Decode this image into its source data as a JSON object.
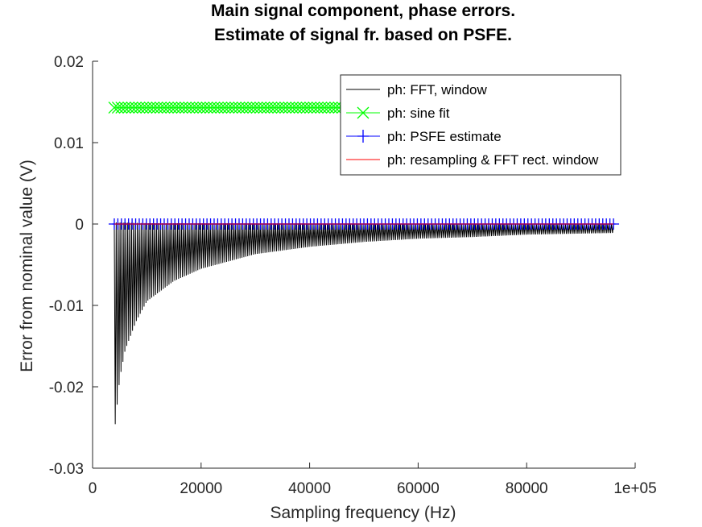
{
  "chart_data": {
    "type": "line",
    "title": [
      "Main signal component, phase errors.",
      "Estimate of signal fr. based on PSFE."
    ],
    "xlabel": "Sampling frequency (Hz)",
    "ylabel": "Error from nominal value (V)",
    "xlim": [
      0,
      100000
    ],
    "ylim": [
      -0.03,
      0.02
    ],
    "xticks": [
      0,
      20000,
      40000,
      60000,
      80000,
      100000
    ],
    "xtick_labels": [
      "0",
      "20000",
      "40000",
      "60000",
      "80000",
      "1e+05"
    ],
    "yticks": [
      -0.03,
      -0.02,
      -0.01,
      0,
      0.01,
      0.02
    ],
    "ytick_labels": [
      "-0.03",
      "-0.02",
      "-0.01",
      "0",
      "0.01",
      "0.02"
    ],
    "grid": false,
    "legend_position": "top-right",
    "series": [
      {
        "name": "ph: FFT, window",
        "color": "#000000",
        "marker": "none",
        "style": "oscillating-envelope",
        "x_range": [
          4000,
          96000
        ],
        "upper_envelope": [
          [
            4000,
            0.0002
          ],
          [
            10000,
            0.0001
          ],
          [
            96000,
            0.0
          ]
        ],
        "lower_envelope": [
          [
            4000,
            -0.0258
          ],
          [
            5000,
            -0.019
          ],
          [
            6000,
            -0.0155
          ],
          [
            8000,
            -0.012
          ],
          [
            10000,
            -0.0095
          ],
          [
            15000,
            -0.007
          ],
          [
            20000,
            -0.0055
          ],
          [
            30000,
            -0.0037
          ],
          [
            40000,
            -0.0028
          ],
          [
            50000,
            -0.0022
          ],
          [
            60000,
            -0.0018
          ],
          [
            70000,
            -0.0016
          ],
          [
            80000,
            -0.0013
          ],
          [
            96000,
            -0.0011
          ]
        ]
      },
      {
        "name": "ph: sine fit",
        "color": "#00ff00",
        "marker": "x",
        "x_range": [
          4000,
          96000
        ],
        "y": 0.0143
      },
      {
        "name": "ph: PSFE estimate",
        "color": "#0000ff",
        "marker": "+",
        "x_range": [
          4000,
          96000
        ],
        "y": 0.0
      },
      {
        "name": "ph: resampling & FFT rect. window",
        "color": "#ff0000",
        "marker": "none",
        "x_range": [
          4000,
          96000
        ],
        "y": 0.0
      }
    ]
  }
}
